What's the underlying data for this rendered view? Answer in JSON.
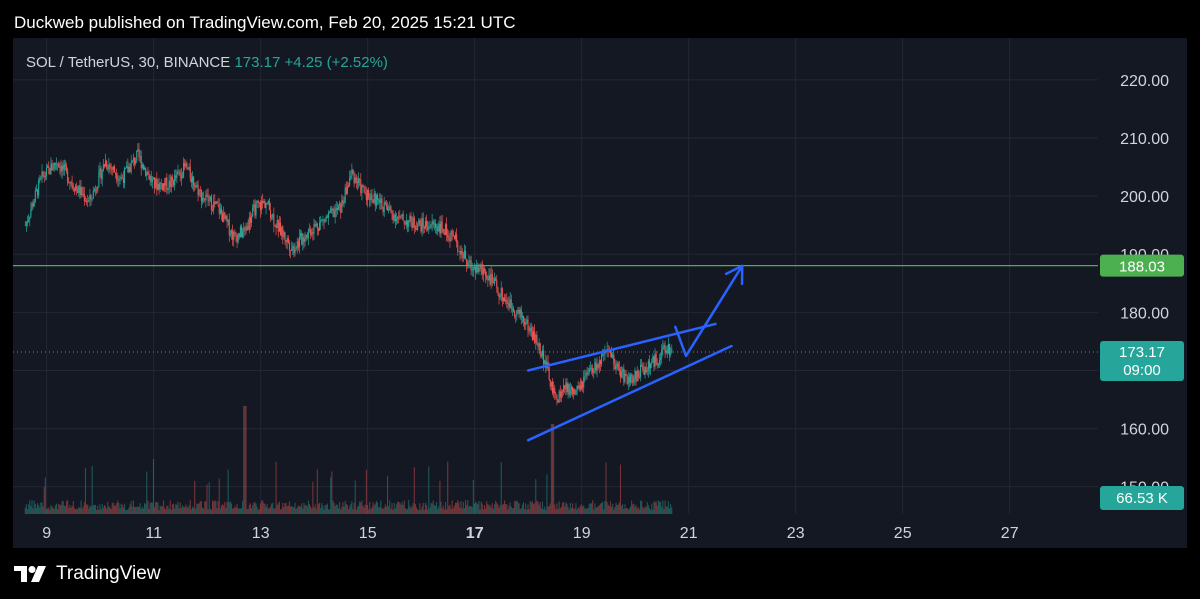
{
  "header": {
    "published_text": "Duckweb published on TradingView.com, Feb 20, 2025 15:21 UTC"
  },
  "symbol": {
    "name": "SOL / TetherUS, 30, BINANCE",
    "price": "173.17",
    "change": "+4.25 (+2.52%)"
  },
  "footer": {
    "brand": "TradingView",
    "logo_icon": "tradingview-logo-icon"
  },
  "colors": {
    "background": "#141823",
    "up": "#26a69a",
    "down": "#ef5350",
    "drawing": "#2962ff",
    "level": "#4caf50"
  },
  "chart_data": {
    "type": "candlestick",
    "xlabel": "",
    "ylabel": "",
    "x_ticks": [
      "9",
      "11",
      "13",
      "15",
      "17",
      "19",
      "21",
      "23",
      "25",
      "27"
    ],
    "x_range_days": [
      8.6,
      28.0
    ],
    "y_ticks": [
      150,
      160,
      170,
      180,
      190,
      200,
      210,
      220
    ],
    "y_tick_labels": [
      "150.00",
      "160.00",
      "170.00",
      "180.00",
      "190.00",
      "200.00",
      "210.00",
      "220.00"
    ],
    "ylim": [
      145.3,
      227.2
    ],
    "price_path": [
      [
        8.6,
        195
      ],
      [
        8.9,
        203
      ],
      [
        9.2,
        206
      ],
      [
        9.5,
        202
      ],
      [
        9.8,
        199
      ],
      [
        10.1,
        206
      ],
      [
        10.4,
        203
      ],
      [
        10.7,
        207
      ],
      [
        11.0,
        202
      ],
      [
        11.3,
        202
      ],
      [
        11.6,
        205
      ],
      [
        11.9,
        200
      ],
      [
        12.2,
        198
      ],
      [
        12.5,
        193
      ],
      [
        12.7,
        194
      ],
      [
        12.9,
        198
      ],
      [
        13.1,
        199
      ],
      [
        13.3,
        195
      ],
      [
        13.6,
        191
      ],
      [
        13.9,
        194
      ],
      [
        14.2,
        196
      ],
      [
        14.5,
        198
      ],
      [
        14.7,
        204
      ],
      [
        14.9,
        201
      ],
      [
        15.2,
        199
      ],
      [
        15.6,
        196
      ],
      [
        16.0,
        195
      ],
      [
        16.3,
        195
      ],
      [
        16.6,
        193
      ],
      [
        16.9,
        188
      ],
      [
        17.2,
        187
      ],
      [
        17.5,
        183
      ],
      [
        17.7,
        181
      ],
      [
        17.9,
        179
      ],
      [
        18.1,
        176
      ],
      [
        18.3,
        172
      ],
      [
        18.5,
        165
      ],
      [
        18.7,
        167
      ],
      [
        18.9,
        166
      ],
      [
        19.1,
        169
      ],
      [
        19.3,
        171
      ],
      [
        19.5,
        173
      ],
      [
        19.7,
        170
      ],
      [
        19.9,
        168
      ],
      [
        20.1,
        170
      ],
      [
        20.3,
        171
      ],
      [
        20.5,
        173
      ],
      [
        20.7,
        174
      ]
    ],
    "series": [
      {
        "name": "SOL / TetherUS",
        "last_value": 173.17,
        "countdown": "09:00"
      }
    ],
    "volume": {
      "last_value_label": "66.53 K"
    },
    "horizontal_level": {
      "value": 188.03,
      "label": "188.03"
    },
    "last_price_tag": {
      "value": 173.17,
      "label": "173.17",
      "countdown": "09:00"
    },
    "drawings": {
      "channel_upper": [
        [
          18.0,
          170.0
        ],
        [
          21.5,
          178.0
        ]
      ],
      "channel_lower": [
        [
          18.0,
          158.0
        ],
        [
          21.8,
          174.2
        ]
      ],
      "projection": [
        [
          20.75,
          177.5
        ],
        [
          20.95,
          172.5
        ],
        [
          22.0,
          188.0
        ]
      ]
    }
  }
}
